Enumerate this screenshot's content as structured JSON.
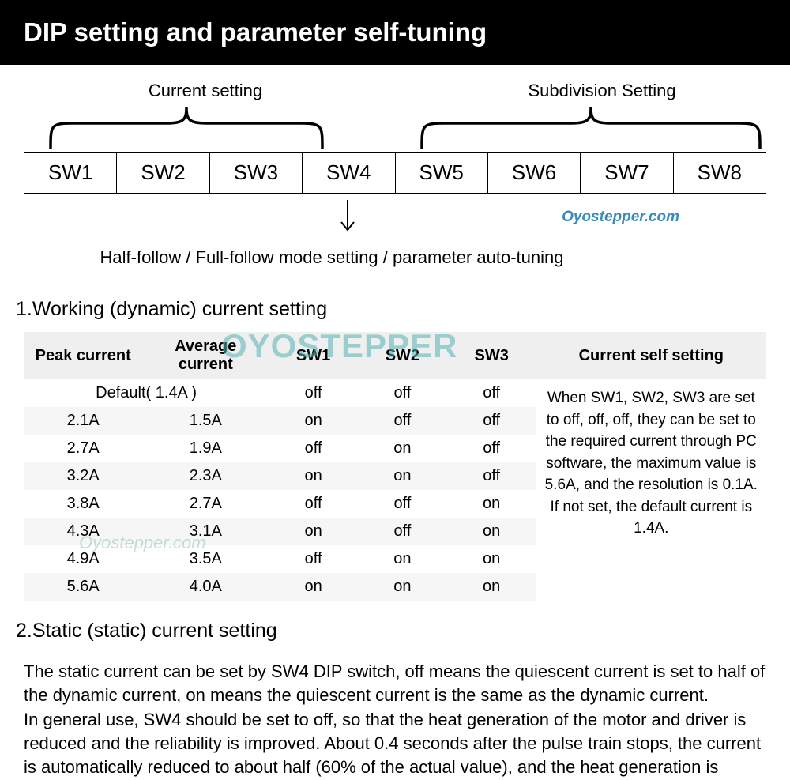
{
  "header": {
    "title": "DIP setting and parameter self-tuning"
  },
  "diagram": {
    "left_bracket_label": "Current setting",
    "right_bracket_label": "Subdivision Setting",
    "switches": [
      "SW1",
      "SW2",
      "SW3",
      "SW4",
      "SW5",
      "SW6",
      "SW7",
      "SW8"
    ],
    "sw4_caption": "Half-follow / Full-follow mode setting / parameter auto-tuning",
    "watermark_small": "Oyostepper.com",
    "bracket_color": "#000000",
    "cell_border_color": "#000000"
  },
  "section1": {
    "title": "1.Working (dynamic) current setting",
    "columns": [
      "Peak current",
      "Average current",
      "SW1",
      "SW2",
      "SW3",
      "Current self setting"
    ],
    "default_row_label": "Default( 1.4A )",
    "default_row_sw": [
      "off",
      "off",
      "off"
    ],
    "rows": [
      {
        "peak": "2.1A",
        "avg": "1.5A",
        "sw": [
          "on",
          "off",
          "off"
        ]
      },
      {
        "peak": "2.7A",
        "avg": "1.9A",
        "sw": [
          "off",
          "on",
          "off"
        ]
      },
      {
        "peak": "3.2A",
        "avg": "2.3A",
        "sw": [
          "on",
          "on",
          "off"
        ]
      },
      {
        "peak": "3.8A",
        "avg": "2.7A",
        "sw": [
          "off",
          "off",
          "on"
        ]
      },
      {
        "peak": "4.3A",
        "avg": "3.1A",
        "sw": [
          "on",
          "off",
          "on"
        ]
      },
      {
        "peak": "4.9A",
        "avg": "3.5A",
        "sw": [
          "off",
          "on",
          "on"
        ]
      },
      {
        "peak": "5.6A",
        "avg": "4.0A",
        "sw": [
          "on",
          "on",
          "on"
        ]
      }
    ],
    "self_setting_text": "When SW1, SW2, SW3 are set to off, off, off, they can be set to the required current through PC software, the maximum value is 5.6A, and the resolution is 0.1A.\nIf not set, the default current is 1.4A.",
    "header_bg": "#efefef",
    "row_even_bg": "#f6f6f6",
    "row_odd_bg": "#ffffff",
    "font_size_pt": 15,
    "watermark_big": "OYOSTEPPER",
    "watermark_small_grey": "Oyostepper.com",
    "watermark_color": "#55b3b3"
  },
  "section2": {
    "title": "2.Static (static) current setting",
    "paragraph": "The static current can be set by SW4 DIP switch, off means the quiescent current is set to half of the dynamic current, on means the quiescent current is the same as the dynamic current.\nIn general use, SW4 should be set to off, so that the heat generation of the motor and driver is reduced and the reliability is improved. About 0.4 seconds after the pulse train stops, the current is automatically reduced to about half (60% of the actual value), and the heat generation is"
  },
  "colors": {
    "header_bg": "#000000",
    "header_text": "#ffffff",
    "page_bg": "#ffffff",
    "text": "#000000"
  }
}
